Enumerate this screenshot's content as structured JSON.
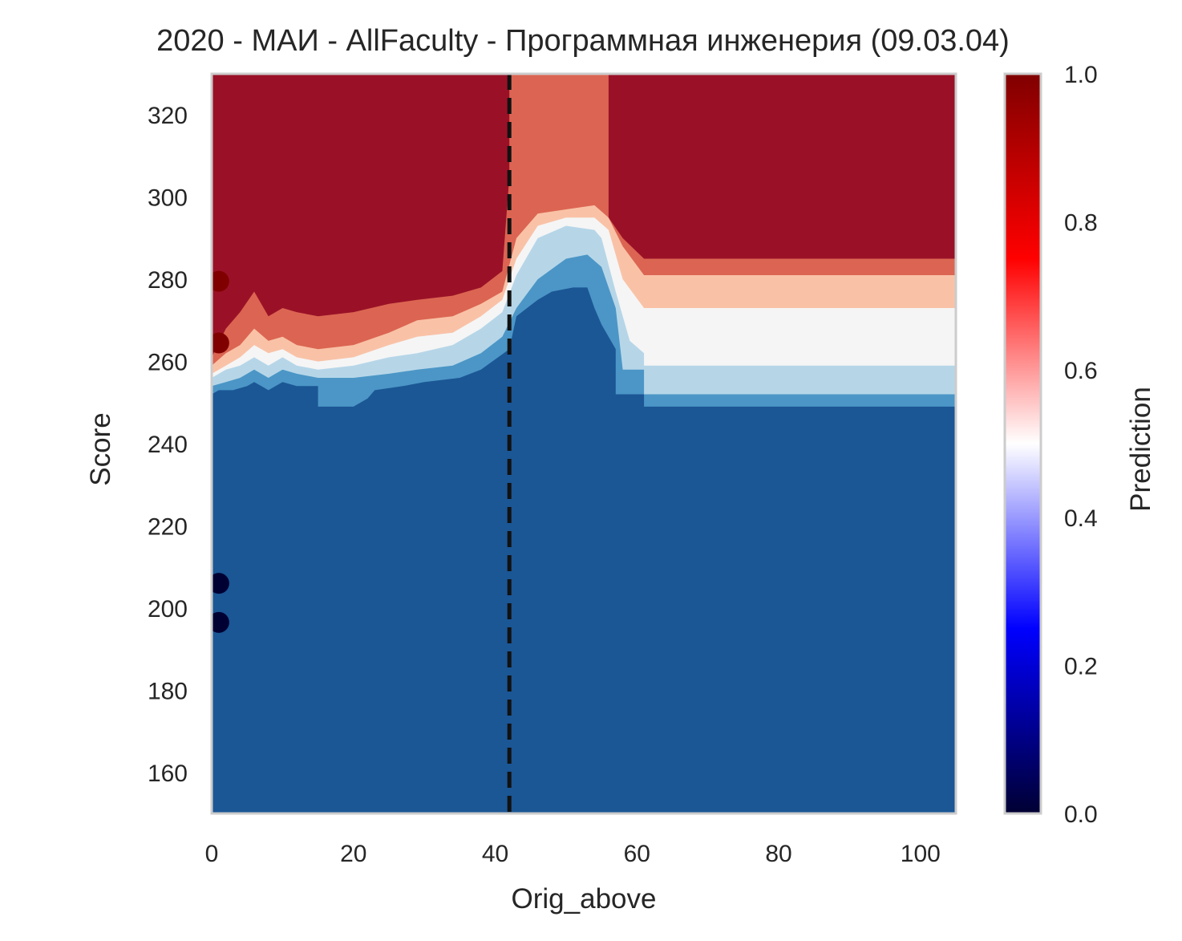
{
  "chart_data": {
    "type": "heatmap",
    "title": "2020 - МАИ - AllFaculty - Программная инженерия (09.03.04)",
    "xlabel": "Orig_above",
    "ylabel": "Score",
    "xlim": [
      0,
      105
    ],
    "ylim": [
      150,
      330
    ],
    "xticks": [
      "0",
      "20",
      "40",
      "60",
      "80",
      "100"
    ],
    "yticks": [
      "160",
      "180",
      "200",
      "220",
      "240",
      "260",
      "280",
      "300",
      "320"
    ],
    "colorbar": {
      "label": "Prediction",
      "ticks": [
        "0.0",
        "0.2",
        "0.4",
        "0.6",
        "0.8",
        "1.0"
      ],
      "range": [
        0,
        1
      ],
      "colormap": "seismic"
    },
    "contour_levels": [
      {
        "range": "0.0-0.2",
        "color": "#1b5695"
      },
      {
        "range": "0.2-0.3",
        "color": "#4b96c6"
      },
      {
        "range": "0.3-0.45",
        "color": "#b6d6e8"
      },
      {
        "range": "0.45-0.55",
        "color": "#f5f5f5"
      },
      {
        "range": "0.55-0.7",
        "color": "#f9c2a7"
      },
      {
        "range": "0.7-0.9",
        "color": "#db6552"
      },
      {
        "range": "0.9-1.0",
        "color": "#9a1127"
      }
    ],
    "boundaries": [
      {
        "level": "0.2",
        "points": [
          [
            0,
            252
          ],
          [
            1,
            253
          ],
          [
            3,
            253
          ],
          [
            5,
            254
          ],
          [
            6,
            255
          ],
          [
            7,
            254
          ],
          [
            8,
            253
          ],
          [
            10,
            255
          ],
          [
            12,
            254
          ],
          [
            15,
            254
          ],
          [
            15,
            249
          ],
          [
            20,
            249
          ],
          [
            22,
            251
          ],
          [
            23,
            253
          ],
          [
            27,
            254
          ],
          [
            30,
            255
          ],
          [
            35,
            256
          ],
          [
            38,
            258
          ],
          [
            42,
            263
          ],
          [
            43,
            271
          ],
          [
            46,
            275
          ],
          [
            48,
            277
          ],
          [
            51,
            278
          ],
          [
            53,
            278
          ],
          [
            54,
            273
          ],
          [
            55,
            269
          ],
          [
            57,
            263
          ],
          [
            57,
            252
          ],
          [
            61,
            252
          ],
          [
            61,
            249
          ],
          [
            105,
            249
          ]
        ]
      },
      {
        "level": "0.3",
        "points": [
          [
            0,
            254
          ],
          [
            2,
            255
          ],
          [
            4,
            256
          ],
          [
            6,
            258
          ],
          [
            8,
            256
          ],
          [
            10,
            258
          ],
          [
            12,
            257
          ],
          [
            15,
            256
          ],
          [
            20,
            256
          ],
          [
            25,
            257
          ],
          [
            29,
            258
          ],
          [
            34,
            259
          ],
          [
            38,
            262
          ],
          [
            41,
            266
          ],
          [
            43,
            273
          ],
          [
            46,
            280
          ],
          [
            50,
            285
          ],
          [
            53,
            286
          ],
          [
            55,
            283
          ],
          [
            57,
            273
          ],
          [
            58,
            258
          ],
          [
            61,
            258
          ],
          [
            61,
            252
          ],
          [
            105,
            252
          ]
        ]
      },
      {
        "level": "0.45",
        "points": [
          [
            0,
            256
          ],
          [
            2,
            258
          ],
          [
            4,
            259
          ],
          [
            6,
            261
          ],
          [
            8,
            259
          ],
          [
            10,
            261
          ],
          [
            12,
            259
          ],
          [
            15,
            258
          ],
          [
            20,
            259
          ],
          [
            25,
            261
          ],
          [
            29,
            262
          ],
          [
            34,
            264
          ],
          [
            38,
            268
          ],
          [
            41,
            272
          ],
          [
            43,
            281
          ],
          [
            46,
            290
          ],
          [
            50,
            293
          ],
          [
            54,
            292
          ],
          [
            55,
            290
          ],
          [
            57,
            277
          ],
          [
            59,
            265
          ],
          [
            61,
            262
          ],
          [
            61,
            259
          ],
          [
            105,
            259
          ]
        ]
      },
      {
        "level": "0.55",
        "points": [
          [
            0,
            257
          ],
          [
            2,
            259
          ],
          [
            4,
            261
          ],
          [
            6,
            264
          ],
          [
            8,
            262
          ],
          [
            10,
            263
          ],
          [
            12,
            261
          ],
          [
            15,
            260
          ],
          [
            20,
            261
          ],
          [
            25,
            264
          ],
          [
            29,
            266
          ],
          [
            34,
            267
          ],
          [
            38,
            271
          ],
          [
            41,
            275
          ],
          [
            43,
            285
          ],
          [
            46,
            293
          ],
          [
            50,
            295
          ],
          [
            54,
            295
          ],
          [
            56,
            292
          ],
          [
            58,
            280
          ],
          [
            61,
            273
          ],
          [
            105,
            273
          ]
        ]
      },
      {
        "level": "0.7",
        "points": [
          [
            0,
            259
          ],
          [
            2,
            262
          ],
          [
            4,
            264
          ],
          [
            6,
            268
          ],
          [
            8,
            265
          ],
          [
            10,
            266
          ],
          [
            12,
            264
          ],
          [
            15,
            263
          ],
          [
            20,
            264
          ],
          [
            25,
            267
          ],
          [
            29,
            270
          ],
          [
            34,
            271
          ],
          [
            38,
            274
          ],
          [
            41,
            277
          ],
          [
            43,
            290
          ],
          [
            46,
            296
          ],
          [
            50,
            297
          ],
          [
            54,
            298
          ],
          [
            56,
            295
          ],
          [
            58,
            288
          ],
          [
            61,
            281
          ],
          [
            105,
            281
          ]
        ]
      },
      {
        "level": "0.9",
        "points": [
          [
            0,
            261
          ],
          [
            2,
            268
          ],
          [
            4,
            272
          ],
          [
            6,
            277
          ],
          [
            8,
            271
          ],
          [
            10,
            273
          ],
          [
            12,
            272
          ],
          [
            15,
            271
          ],
          [
            20,
            272
          ],
          [
            25,
            274
          ],
          [
            29,
            275
          ],
          [
            34,
            276
          ],
          [
            38,
            278
          ],
          [
            41,
            282
          ],
          [
            42,
            305
          ],
          [
            42,
            330
          ],
          [
            56,
            330
          ],
          [
            56,
            295
          ],
          [
            58,
            290
          ],
          [
            61,
            285
          ],
          [
            105,
            285
          ]
        ]
      }
    ],
    "vertical_line": {
      "x": 42,
      "style": "dashed",
      "color": "#111111"
    },
    "points": [
      {
        "x": 1,
        "y": 279.5,
        "prediction": 1.0
      },
      {
        "x": 1,
        "y": 264.5,
        "prediction": 1.0
      },
      {
        "x": 1,
        "y": 206,
        "prediction": 0.0
      },
      {
        "x": 1,
        "y": 196.5,
        "prediction": 0.0
      }
    ]
  }
}
